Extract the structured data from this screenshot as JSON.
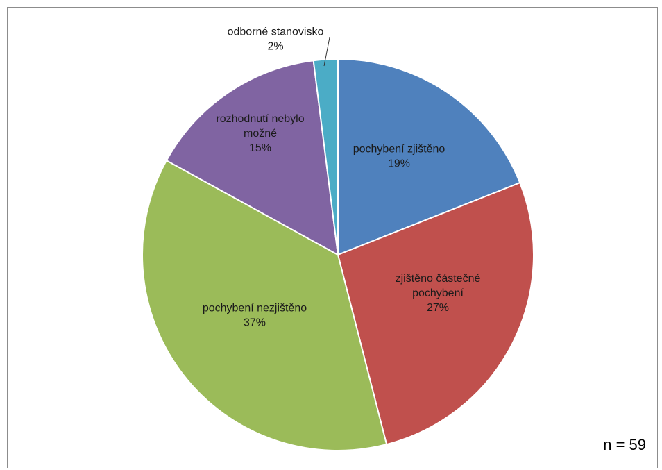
{
  "chart_data": {
    "type": "pie",
    "title": "",
    "slices": [
      {
        "label": "pochybení zjištěno",
        "percent_label": "19%",
        "value": 19,
        "color": "#4f81bd"
      },
      {
        "label": "zjištěno částečné pochybení",
        "percent_label": "27%",
        "value": 27,
        "color": "#c0504d"
      },
      {
        "label": "pochybení nezjištěno",
        "percent_label": "37%",
        "value": 37,
        "color": "#9bbb59"
      },
      {
        "label": "rozhodnutí nebylo možné",
        "percent_label": "15%",
        "value": 15,
        "color": "#8064a2"
      },
      {
        "label": "odborné stanovisko",
        "percent_label": "2%",
        "value": 2,
        "color": "#4bacc6"
      }
    ],
    "start_angle_deg": 0,
    "direction": "clockwise",
    "annotation": "n = 59"
  }
}
